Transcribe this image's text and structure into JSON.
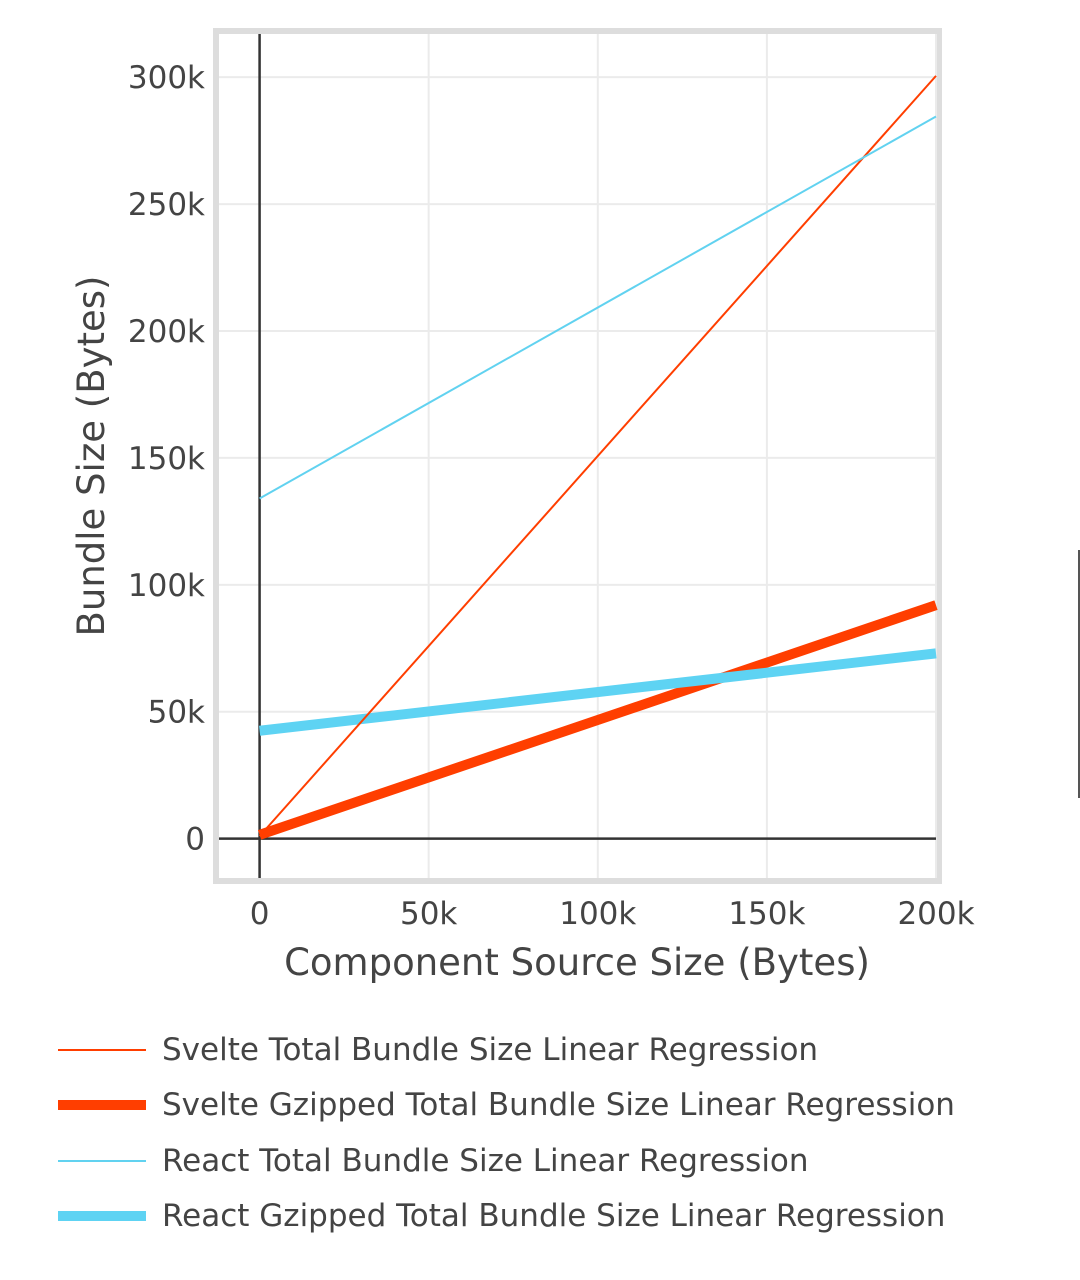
{
  "chart_data": {
    "type": "line",
    "title": "",
    "xlabel": "Component Source Size (Bytes)",
    "ylabel": "Bundle Size (Bytes)",
    "xlim": [
      -12000,
      200000
    ],
    "ylim": [
      -15500,
      317000
    ],
    "grid": true,
    "x_ticks": [
      {
        "value": 0,
        "label": "0"
      },
      {
        "value": 50000,
        "label": "50k"
      },
      {
        "value": 100000,
        "label": "100k"
      },
      {
        "value": 150000,
        "label": "150k"
      },
      {
        "value": 200000,
        "label": "200k"
      }
    ],
    "y_ticks": [
      {
        "value": 0,
        "label": "0"
      },
      {
        "value": 50000,
        "label": "50k"
      },
      {
        "value": 100000,
        "label": "100k"
      },
      {
        "value": 150000,
        "label": "150k"
      },
      {
        "value": 200000,
        "label": "200k"
      },
      {
        "value": 250000,
        "label": "250k"
      },
      {
        "value": 300000,
        "label": "300k"
      }
    ],
    "legend_position": "bottom",
    "series": [
      {
        "name": "Svelte Total Bundle Size Linear Regression",
        "color": "#ff3e00",
        "weight": "thin",
        "x": [
          0,
          200000
        ],
        "y": [
          1000,
          300500
        ]
      },
      {
        "name": "Svelte Gzipped Total Bundle Size Linear Regression",
        "color": "#ff3e00",
        "weight": "thick",
        "x": [
          0,
          200000
        ],
        "y": [
          1500,
          92000
        ]
      },
      {
        "name": "React Total Bundle Size Linear Regression",
        "color": "#61d2f0",
        "weight": "thin",
        "x": [
          0,
          200000
        ],
        "y": [
          134000,
          284500
        ]
      },
      {
        "name": "React Gzipped Total Bundle Size Linear Regression",
        "color": "#5ed3f3",
        "weight": "thick",
        "x": [
          0,
          200000
        ],
        "y": [
          42500,
          73000
        ]
      }
    ]
  },
  "colors": {
    "grid": "#ebebeb",
    "frame": "#dddddd",
    "axis": "#333333",
    "text": "#444444"
  }
}
